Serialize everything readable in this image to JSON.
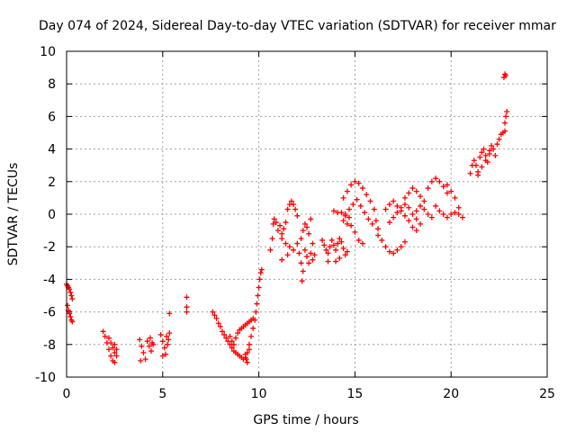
{
  "chart_data": {
    "type": "scatter",
    "title": "Day 074 of 2024, Sidereal Day-to-day VTEC variation (SDTVAR) for receiver mmar",
    "xlabel": "GPS time / hours",
    "ylabel": "SDTVAR / TECUs",
    "xlim": [
      0,
      25
    ],
    "ylim": [
      -10,
      10
    ],
    "x_ticks": [
      0,
      5,
      10,
      15,
      20,
      25
    ],
    "y_ticks": [
      -10,
      -8,
      -6,
      -4,
      -2,
      0,
      2,
      4,
      6,
      8,
      10
    ],
    "grid": true,
    "marker": "+",
    "color": "#ff0000",
    "series": [
      {
        "values": [
          [
            0.0,
            -4.3
          ],
          [
            0.05,
            -4.4
          ],
          [
            0.1,
            -4.5
          ],
          [
            0.15,
            -4.6
          ],
          [
            0.2,
            -4.8
          ],
          [
            0.25,
            -5.0
          ],
          [
            0.3,
            -5.2
          ],
          [
            0.05,
            -5.6
          ],
          [
            0.1,
            -5.9
          ],
          [
            0.15,
            -6.1
          ],
          [
            0.2,
            -6.3
          ],
          [
            0.25,
            -6.5
          ],
          [
            0.3,
            -6.6
          ],
          [
            1.9,
            -7.2
          ],
          [
            2.0,
            -7.5
          ],
          [
            2.1,
            -7.9
          ],
          [
            2.2,
            -8.3
          ],
          [
            2.3,
            -8.7
          ],
          [
            2.4,
            -9.0
          ],
          [
            2.5,
            -9.1
          ],
          [
            2.2,
            -7.6
          ],
          [
            2.3,
            -7.9
          ],
          [
            2.4,
            -8.2
          ],
          [
            2.5,
            -8.5
          ],
          [
            2.6,
            -8.7
          ],
          [
            2.5,
            -8.0
          ],
          [
            2.6,
            -8.3
          ],
          [
            3.8,
            -7.7
          ],
          [
            3.9,
            -8.1
          ],
          [
            4.0,
            -8.5
          ],
          [
            4.1,
            -8.9
          ],
          [
            3.85,
            -9.0
          ],
          [
            4.2,
            -7.8
          ],
          [
            4.3,
            -8.1
          ],
          [
            4.4,
            -8.4
          ],
          [
            4.5,
            -8.0
          ],
          [
            4.35,
            -7.6
          ],
          [
            4.45,
            -7.9
          ],
          [
            4.9,
            -7.4
          ],
          [
            5.0,
            -7.8
          ],
          [
            5.1,
            -8.2
          ],
          [
            5.15,
            -8.6
          ],
          [
            5.0,
            -8.7
          ],
          [
            5.2,
            -7.5
          ],
          [
            5.3,
            -7.7
          ],
          [
            5.35,
            -7.3
          ],
          [
            5.25,
            -8.0
          ],
          [
            5.35,
            -6.1
          ],
          [
            6.25,
            -5.1
          ],
          [
            6.25,
            -5.7
          ],
          [
            6.25,
            -6.0
          ],
          [
            7.6,
            -6.0
          ],
          [
            7.7,
            -6.2
          ],
          [
            7.8,
            -6.4
          ],
          [
            7.9,
            -6.7
          ],
          [
            8.0,
            -6.9
          ],
          [
            8.1,
            -7.2
          ],
          [
            8.2,
            -7.4
          ],
          [
            8.3,
            -7.6
          ],
          [
            8.4,
            -7.8
          ],
          [
            8.5,
            -8.0
          ],
          [
            8.6,
            -8.2
          ],
          [
            8.7,
            -8.4
          ],
          [
            8.8,
            -8.5
          ],
          [
            8.9,
            -8.6
          ],
          [
            9.0,
            -8.7
          ],
          [
            9.1,
            -8.8
          ],
          [
            9.2,
            -8.9
          ],
          [
            9.3,
            -8.8
          ],
          [
            9.4,
            -8.5
          ],
          [
            8.5,
            -7.5
          ],
          [
            8.6,
            -7.8
          ],
          [
            8.7,
            -8.0
          ],
          [
            8.8,
            -7.6
          ],
          [
            8.9,
            -7.3
          ],
          [
            9.0,
            -7.1
          ],
          [
            9.1,
            -7.0
          ],
          [
            9.2,
            -6.9
          ],
          [
            9.3,
            -6.8
          ],
          [
            9.4,
            -6.7
          ],
          [
            9.5,
            -6.6
          ],
          [
            9.6,
            -6.5
          ],
          [
            9.7,
            -6.4
          ],
          [
            9.5,
            -8.0
          ],
          [
            9.6,
            -7.5
          ],
          [
            9.7,
            -7.0
          ],
          [
            9.8,
            -6.5
          ],
          [
            9.85,
            -6.0
          ],
          [
            9.9,
            -5.5
          ],
          [
            9.95,
            -5.0
          ],
          [
            10.0,
            -4.5
          ],
          [
            10.05,
            -4.0
          ],
          [
            10.1,
            -3.6
          ],
          [
            10.15,
            -3.4
          ],
          [
            9.3,
            -8.6
          ],
          [
            9.35,
            -8.9
          ],
          [
            9.4,
            -9.1
          ],
          [
            9.5,
            -8.3
          ],
          [
            10.6,
            -2.2
          ],
          [
            10.7,
            -1.5
          ],
          [
            10.75,
            -0.6
          ],
          [
            10.8,
            -0.3
          ],
          [
            10.9,
            -0.5
          ],
          [
            11.0,
            -1.0
          ],
          [
            11.1,
            -0.7
          ],
          [
            11.2,
            -1.2
          ],
          [
            11.3,
            -0.9
          ],
          [
            11.4,
            -0.5
          ],
          [
            11.5,
            0.3
          ],
          [
            11.6,
            0.6
          ],
          [
            11.7,
            0.8
          ],
          [
            11.8,
            0.6
          ],
          [
            11.9,
            0.3
          ],
          [
            12.0,
            -0.1
          ],
          [
            11.2,
            -1.5
          ],
          [
            11.4,
            -1.8
          ],
          [
            11.6,
            -2.0
          ],
          [
            11.8,
            -2.2
          ],
          [
            12.0,
            -1.8
          ],
          [
            12.1,
            -2.4
          ],
          [
            12.2,
            -3.0
          ],
          [
            12.3,
            -3.5
          ],
          [
            12.25,
            -4.1
          ],
          [
            12.2,
            -1.5
          ],
          [
            12.3,
            -1.0
          ],
          [
            12.4,
            -0.6
          ],
          [
            12.5,
            -0.8
          ],
          [
            12.6,
            -1.2
          ],
          [
            12.7,
            -2.4
          ],
          [
            12.8,
            -2.8
          ],
          [
            12.9,
            -2.5
          ],
          [
            12.4,
            -2.2
          ],
          [
            12.5,
            -2.6
          ],
          [
            12.6,
            -3.0
          ],
          [
            11.2,
            -2.8
          ],
          [
            11.5,
            -2.5
          ],
          [
            12.7,
            -0.3
          ],
          [
            12.8,
            -1.8
          ],
          [
            13.3,
            -1.6
          ],
          [
            13.4,
            -1.9
          ],
          [
            13.5,
            -2.2
          ],
          [
            13.6,
            -2.4
          ],
          [
            13.7,
            -2.0
          ],
          [
            13.8,
            -1.6
          ],
          [
            13.9,
            -1.9
          ],
          [
            14.0,
            -2.2
          ],
          [
            14.1,
            -1.8
          ],
          [
            14.2,
            -1.5
          ],
          [
            14.3,
            -1.7
          ],
          [
            14.4,
            -2.1
          ],
          [
            14.5,
            -2.5
          ],
          [
            14.6,
            -2.3
          ],
          [
            14.2,
            -2.7
          ],
          [
            14.0,
            -2.9
          ],
          [
            13.6,
            -2.9
          ],
          [
            13.9,
            0.2
          ],
          [
            14.1,
            0.1
          ],
          [
            14.3,
            0.1
          ],
          [
            14.5,
            0.0
          ],
          [
            14.7,
            -0.2
          ],
          [
            14.4,
            -0.4
          ],
          [
            14.6,
            -0.6
          ],
          [
            14.8,
            -0.7
          ],
          [
            15.0,
            -1.1
          ],
          [
            15.2,
            -1.6
          ],
          [
            15.4,
            -1.8
          ],
          [
            14.4,
            1.0
          ],
          [
            14.6,
            1.4
          ],
          [
            14.8,
            1.8
          ],
          [
            15.0,
            2.0
          ],
          [
            15.2,
            1.9
          ],
          [
            15.4,
            1.6
          ],
          [
            15.6,
            1.2
          ],
          [
            15.8,
            0.8
          ],
          [
            16.0,
            0.3
          ],
          [
            16.1,
            -0.4
          ],
          [
            16.2,
            -0.9
          ],
          [
            14.5,
            -0.1
          ],
          [
            14.7,
            0.3
          ],
          [
            14.9,
            0.6
          ],
          [
            15.1,
            0.9
          ],
          [
            15.3,
            0.5
          ],
          [
            15.5,
            0.1
          ],
          [
            15.7,
            -0.3
          ],
          [
            15.9,
            -0.6
          ],
          [
            16.2,
            -1.3
          ],
          [
            16.4,
            -1.6
          ],
          [
            16.6,
            -2.0
          ],
          [
            16.8,
            -2.3
          ],
          [
            17.0,
            -2.4
          ],
          [
            17.2,
            -2.2
          ],
          [
            17.4,
            -2.0
          ],
          [
            17.6,
            -1.7
          ],
          [
            16.8,
            -0.5
          ],
          [
            17.0,
            -0.2
          ],
          [
            17.2,
            0.1
          ],
          [
            17.4,
            0.4
          ],
          [
            17.6,
            0.6
          ],
          [
            17.8,
            0.4
          ],
          [
            18.0,
            0.0
          ],
          [
            18.2,
            -0.3
          ],
          [
            18.4,
            -0.6
          ],
          [
            16.6,
            0.3
          ],
          [
            16.8,
            0.6
          ],
          [
            17.0,
            0.8
          ],
          [
            17.2,
            0.5
          ],
          [
            17.4,
            0.2
          ],
          [
            17.6,
            -0.1
          ],
          [
            17.8,
            -0.4
          ],
          [
            18.0,
            -0.8
          ],
          [
            18.2,
            -1.0
          ],
          [
            17.6,
            1.0
          ],
          [
            17.8,
            1.3
          ],
          [
            18.0,
            1.6
          ],
          [
            18.2,
            1.4
          ],
          [
            18.4,
            1.1
          ],
          [
            18.6,
            0.8
          ],
          [
            18.8,
            1.6
          ],
          [
            19.0,
            2.0
          ],
          [
            19.2,
            2.2
          ],
          [
            19.4,
            2.0
          ],
          [
            19.6,
            1.7
          ],
          [
            19.8,
            1.3
          ],
          [
            18.2,
            0.2
          ],
          [
            18.4,
            0.5
          ],
          [
            18.6,
            0.3
          ],
          [
            18.8,
            0.0
          ],
          [
            19.0,
            -0.2
          ],
          [
            19.2,
            0.5
          ],
          [
            19.4,
            0.2
          ],
          [
            19.6,
            0.0
          ],
          [
            19.8,
            -0.2
          ],
          [
            20.0,
            0.0
          ],
          [
            20.2,
            0.1
          ],
          [
            20.4,
            0.0
          ],
          [
            20.6,
            -0.2
          ],
          [
            19.8,
            1.8
          ],
          [
            20.0,
            1.4
          ],
          [
            20.2,
            1.0
          ],
          [
            20.4,
            0.4
          ],
          [
            21.0,
            2.5
          ],
          [
            21.1,
            3.0
          ],
          [
            21.2,
            3.3
          ],
          [
            21.3,
            3.0
          ],
          [
            21.4,
            2.6
          ],
          [
            21.5,
            3.5
          ],
          [
            21.6,
            3.8
          ],
          [
            21.7,
            4.0
          ],
          [
            21.8,
            3.6
          ],
          [
            21.9,
            3.2
          ],
          [
            22.0,
            3.9
          ],
          [
            22.1,
            4.2
          ],
          [
            22.2,
            4.0
          ],
          [
            22.3,
            3.6
          ],
          [
            22.4,
            4.3
          ],
          [
            22.5,
            4.6
          ],
          [
            22.6,
            4.9
          ],
          [
            22.7,
            5.0
          ],
          [
            22.8,
            5.1
          ],
          [
            21.4,
            2.4
          ],
          [
            21.6,
            2.9
          ],
          [
            21.8,
            3.3
          ],
          [
            22.0,
            3.7
          ],
          [
            22.8,
            5.6
          ],
          [
            22.85,
            6.0
          ],
          [
            22.9,
            6.3
          ],
          [
            22.75,
            8.4
          ],
          [
            22.8,
            8.6
          ],
          [
            22.85,
            8.5
          ]
        ]
      }
    ]
  }
}
